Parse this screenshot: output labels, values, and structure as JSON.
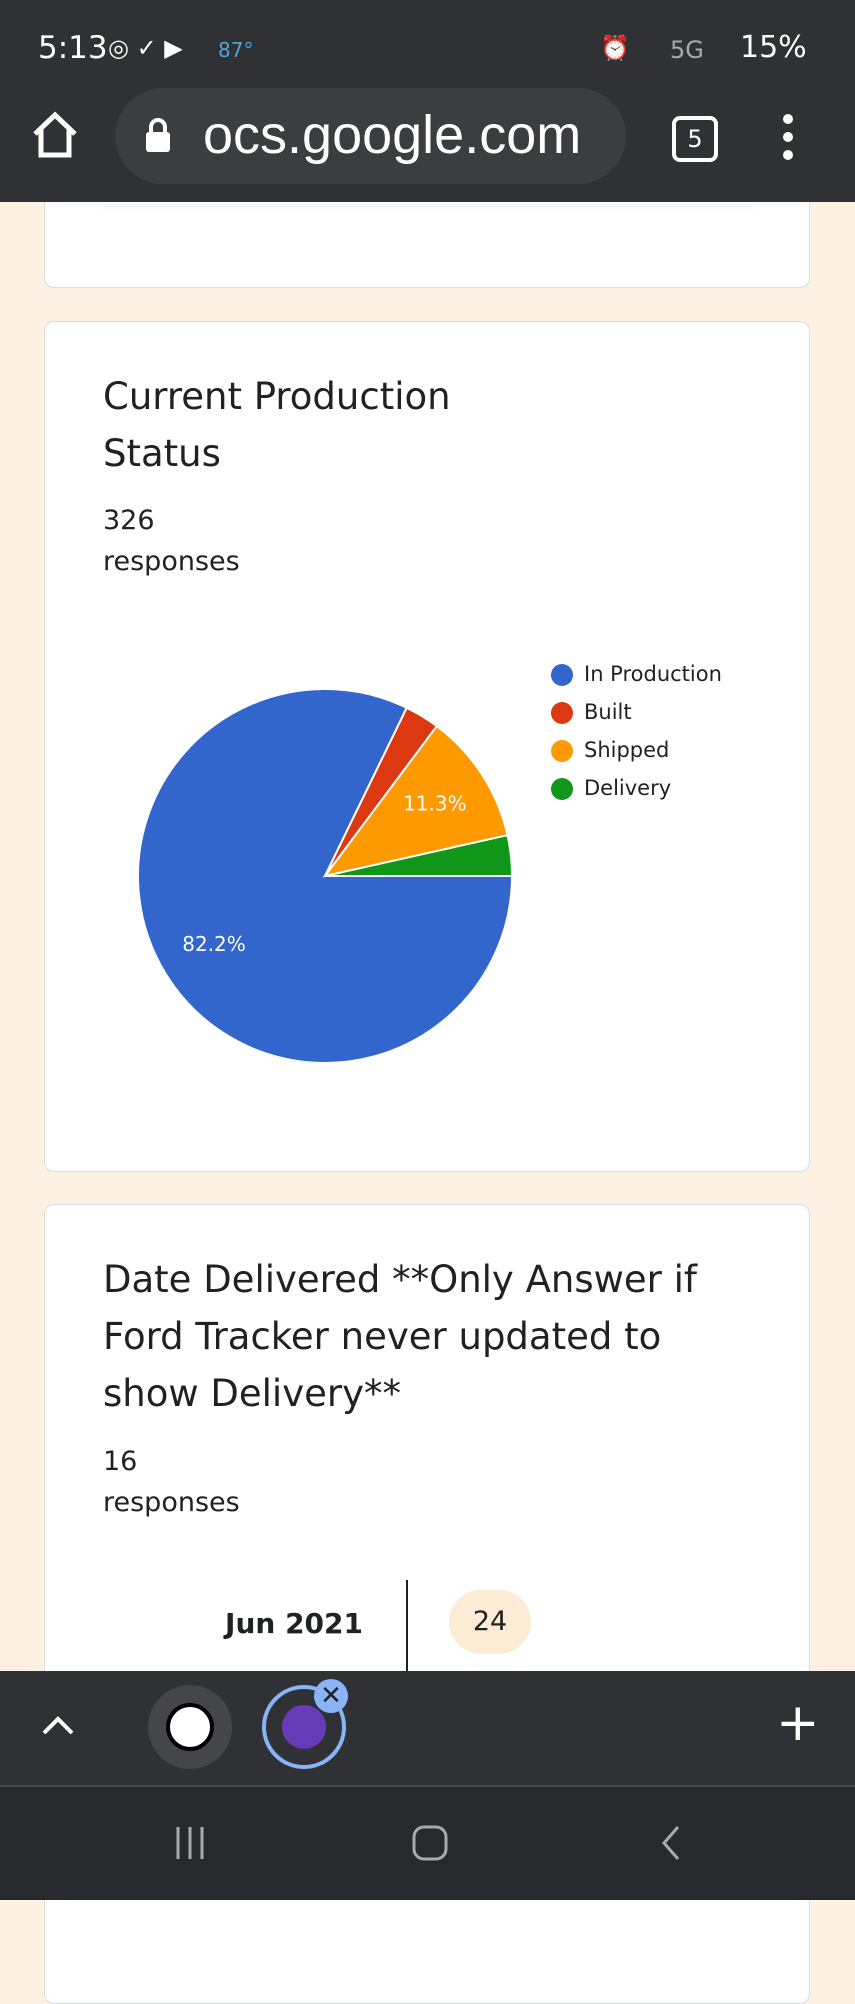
{
  "status_bar": {
    "time": "5:13",
    "temperature": "87°",
    "network": "5G",
    "battery": "15%"
  },
  "browser": {
    "url": "ocs.google.com",
    "tab_count": "5"
  },
  "chart_data": {
    "type": "pie",
    "title": "Current Production Status",
    "response_count": 326,
    "response_label": "responses",
    "categories": [
      "In Production",
      "Built",
      "Shipped",
      "Delivery"
    ],
    "values": [
      82.2,
      3.0,
      11.3,
      3.5
    ],
    "value_labels": [
      "82.2%",
      null,
      "11.3%",
      null
    ],
    "colors": [
      "#3366cc",
      "#dc3912",
      "#ff9900",
      "#109618"
    ],
    "legend": "right"
  },
  "date_card": {
    "title": "Date Delivered **Only Answer if Ford Tracker never updated to show Delivery**",
    "response_count": 16,
    "response_label": "responses",
    "rows": [
      {
        "month": "Jun 2021",
        "count": 24
      }
    ]
  }
}
